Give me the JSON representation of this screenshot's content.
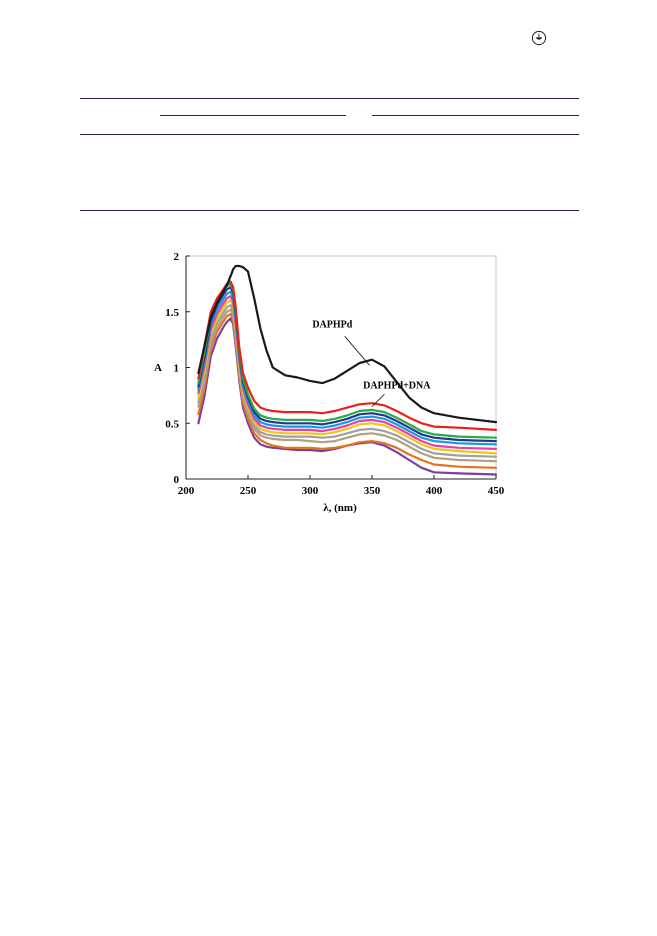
{
  "chart_data": {
    "type": "line",
    "title": "",
    "xlabel": "λ, (nm)",
    "ylabel": "A",
    "xlim": [
      200,
      450
    ],
    "ylim": [
      0,
      2
    ],
    "xticks": [
      "200",
      "250",
      "300",
      "350",
      "400",
      "450"
    ],
    "yticks": [
      "0",
      "0.5",
      "1",
      "1.5",
      "2"
    ],
    "grid": false,
    "legend": "none",
    "annotations": [
      {
        "text": "DAPHPd",
        "points_to": [
          348,
          1.02
        ]
      },
      {
        "text": "DAPHPd+DNA",
        "points_to": [
          350,
          0.65
        ]
      }
    ],
    "x": [
      210,
      215,
      220,
      225,
      230,
      233,
      236,
      238,
      240,
      243,
      246,
      250,
      255,
      260,
      265,
      270,
      280,
      290,
      300,
      310,
      320,
      330,
      340,
      350,
      360,
      370,
      380,
      390,
      400,
      420,
      450
    ],
    "series": [
      {
        "color": "#1a1a1a",
        "values": [
          0.95,
          1.2,
          1.45,
          1.58,
          1.68,
          1.74,
          1.82,
          1.88,
          1.91,
          1.91,
          1.9,
          1.86,
          1.62,
          1.35,
          1.15,
          1.0,
          0.93,
          0.91,
          0.88,
          0.86,
          0.9,
          0.97,
          1.04,
          1.07,
          1.01,
          0.87,
          0.73,
          0.64,
          0.59,
          0.55,
          0.51
        ]
      },
      {
        "color": "#e8211b",
        "values": [
          0.9,
          1.2,
          1.5,
          1.62,
          1.7,
          1.75,
          1.77,
          1.72,
          1.55,
          1.18,
          0.95,
          0.82,
          0.7,
          0.64,
          0.62,
          0.61,
          0.6,
          0.6,
          0.6,
          0.59,
          0.61,
          0.64,
          0.67,
          0.68,
          0.66,
          0.61,
          0.55,
          0.5,
          0.47,
          0.46,
          0.44
        ]
      },
      {
        "color": "#2ba84a",
        "values": [
          0.86,
          1.15,
          1.46,
          1.6,
          1.68,
          1.73,
          1.75,
          1.7,
          1.52,
          1.15,
          0.9,
          0.76,
          0.63,
          0.57,
          0.55,
          0.54,
          0.53,
          0.53,
          0.53,
          0.52,
          0.54,
          0.57,
          0.61,
          0.62,
          0.6,
          0.55,
          0.49,
          0.43,
          0.4,
          0.38,
          0.37
        ]
      },
      {
        "color": "#1f3a93",
        "values": [
          0.83,
          1.1,
          1.42,
          1.56,
          1.65,
          1.7,
          1.72,
          1.67,
          1.48,
          1.12,
          0.87,
          0.73,
          0.6,
          0.54,
          0.52,
          0.51,
          0.5,
          0.5,
          0.5,
          0.49,
          0.51,
          0.54,
          0.58,
          0.59,
          0.57,
          0.52,
          0.46,
          0.4,
          0.37,
          0.35,
          0.34
        ]
      },
      {
        "color": "#1a9ad6",
        "values": [
          0.8,
          1.06,
          1.38,
          1.52,
          1.61,
          1.66,
          1.68,
          1.63,
          1.44,
          1.09,
          0.84,
          0.7,
          0.57,
          0.51,
          0.49,
          0.48,
          0.47,
          0.47,
          0.47,
          0.46,
          0.48,
          0.51,
          0.55,
          0.56,
          0.54,
          0.49,
          0.43,
          0.37,
          0.34,
          0.32,
          0.31
        ]
      },
      {
        "color": "#e83fa4",
        "values": [
          0.77,
          1.02,
          1.34,
          1.48,
          1.57,
          1.62,
          1.64,
          1.59,
          1.4,
          1.06,
          0.81,
          0.67,
          0.54,
          0.48,
          0.46,
          0.45,
          0.44,
          0.44,
          0.44,
          0.43,
          0.45,
          0.48,
          0.52,
          0.53,
          0.51,
          0.46,
          0.4,
          0.34,
          0.3,
          0.28,
          0.27
        ]
      },
      {
        "color": "#f2c418",
        "values": [
          0.73,
          0.98,
          1.3,
          1.44,
          1.53,
          1.58,
          1.6,
          1.55,
          1.36,
          1.02,
          0.78,
          0.64,
          0.51,
          0.45,
          0.43,
          0.42,
          0.41,
          0.41,
          0.41,
          0.4,
          0.42,
          0.45,
          0.49,
          0.5,
          0.48,
          0.43,
          0.37,
          0.31,
          0.27,
          0.25,
          0.23
        ]
      },
      {
        "color": "#a0a0a0",
        "values": [
          0.69,
          0.93,
          1.26,
          1.4,
          1.49,
          1.54,
          1.56,
          1.51,
          1.32,
          0.99,
          0.75,
          0.61,
          0.48,
          0.42,
          0.4,
          0.39,
          0.38,
          0.38,
          0.38,
          0.37,
          0.38,
          0.41,
          0.44,
          0.45,
          0.43,
          0.39,
          0.33,
          0.27,
          0.23,
          0.21,
          0.2
        ]
      },
      {
        "color": "#b0a080",
        "values": [
          0.65,
          0.88,
          1.22,
          1.36,
          1.45,
          1.5,
          1.52,
          1.47,
          1.28,
          0.96,
          0.72,
          0.58,
          0.45,
          0.39,
          0.37,
          0.36,
          0.35,
          0.35,
          0.34,
          0.33,
          0.34,
          0.37,
          0.4,
          0.41,
          0.39,
          0.35,
          0.29,
          0.23,
          0.19,
          0.17,
          0.16
        ]
      },
      {
        "color": "#e6721d",
        "values": [
          0.58,
          0.82,
          1.17,
          1.32,
          1.41,
          1.46,
          1.48,
          1.43,
          1.24,
          0.92,
          0.68,
          0.54,
          0.41,
          0.35,
          0.32,
          0.3,
          0.28,
          0.28,
          0.28,
          0.27,
          0.28,
          0.3,
          0.33,
          0.34,
          0.32,
          0.28,
          0.22,
          0.17,
          0.13,
          0.11,
          0.1
        ]
      },
      {
        "color": "#7b3f9e",
        "values": [
          0.5,
          0.75,
          1.1,
          1.26,
          1.36,
          1.41,
          1.44,
          1.39,
          1.2,
          0.88,
          0.64,
          0.5,
          0.37,
          0.31,
          0.29,
          0.28,
          0.27,
          0.26,
          0.26,
          0.25,
          0.27,
          0.3,
          0.32,
          0.33,
          0.3,
          0.24,
          0.17,
          0.1,
          0.06,
          0.05,
          0.04
        ]
      }
    ]
  }
}
